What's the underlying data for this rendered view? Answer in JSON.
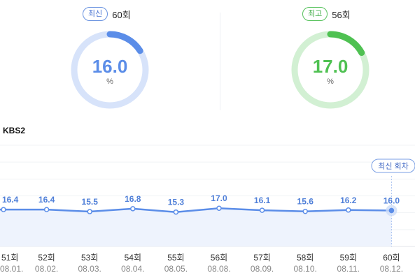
{
  "summary": {
    "latest": {
      "badge": "최신",
      "episode": "60회",
      "value": "16.0",
      "unit": "%",
      "fraction": 0.16,
      "color": "#5b8de8",
      "track": "#d7e3fa"
    },
    "best": {
      "badge": "최고",
      "episode": "56회",
      "value": "17.0",
      "unit": "%",
      "fraction": 0.17,
      "color": "#4fc152",
      "track": "#d2f0d3"
    }
  },
  "chart_data": {
    "type": "line",
    "title": "KBS2",
    "categories": [
      "51회",
      "52회",
      "53회",
      "54회",
      "55회",
      "56회",
      "57회",
      "58회",
      "59회",
      "60회"
    ],
    "dates": [
      "08.01.",
      "08.02.",
      "08.03.",
      "08.04.",
      "08.05.",
      "08.08.",
      "08.09.",
      "08.10.",
      "08.11.",
      "08.12."
    ],
    "values": [
      16.4,
      16.4,
      15.5,
      16.8,
      15.3,
      17.0,
      16.1,
      15.6,
      16.2,
      16.0
    ],
    "ylim": [
      0,
      45
    ],
    "grid": true,
    "latest_tag": "최신 회차",
    "line_color": "#5b8de8",
    "fill_color": "#eef3fd"
  }
}
